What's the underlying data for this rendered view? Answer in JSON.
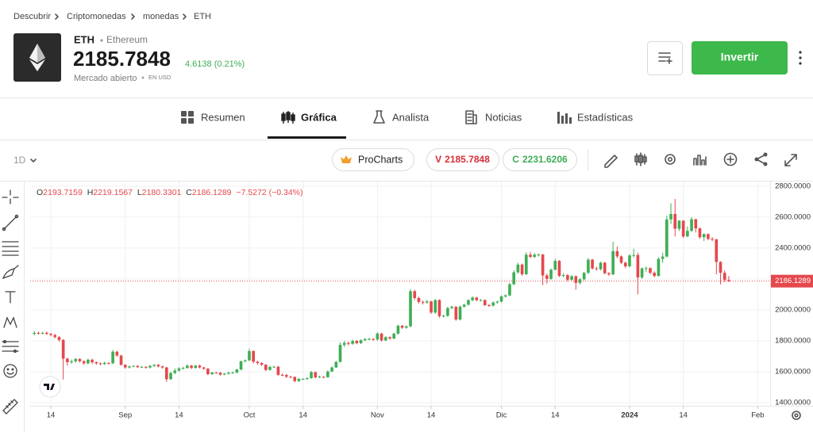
{
  "breadcrumb": [
    "Descubrir",
    "Criptomonedas",
    "monedas",
    "ETH"
  ],
  "instrument": {
    "symbol": "ETH",
    "name": "Ethereum",
    "price": "2185.7848",
    "change": "4.6138 (0.21%)",
    "status": "Mercado abierto",
    "currency": "EN USD"
  },
  "actions": {
    "invest": "Invertir"
  },
  "tabs": [
    "Resumen",
    "Gráfica",
    "Analista",
    "Noticias",
    "Estadísticas"
  ],
  "toolbar": {
    "interval": "1D",
    "procharts": "ProCharts",
    "sell_label": "V",
    "buy_label": "C",
    "buy_price": "2231.6206"
  },
  "chart_data": {
    "type": "candlestick",
    "ohlc_labels": [
      "O",
      "H",
      "L",
      "C"
    ],
    "change_label": "−7.5272 (−0.34%)",
    "up_color": "#3fae55",
    "down_color": "#e5484d",
    "grid": true,
    "x": [
      "2023-08-10",
      "2023-08-11",
      "2023-08-12",
      "2023-08-13",
      "2023-08-14",
      "2023-08-15",
      "2023-08-16",
      "2023-08-17",
      "2023-08-18",
      "2023-08-19",
      "2023-08-20",
      "2023-08-21",
      "2023-08-22",
      "2023-08-23",
      "2023-08-24",
      "2023-08-25",
      "2023-08-26",
      "2023-08-27",
      "2023-08-28",
      "2023-08-29",
      "2023-08-30",
      "2023-08-31",
      "2023-09-01",
      "2023-09-02",
      "2023-09-03",
      "2023-09-04",
      "2023-09-05",
      "2023-09-06",
      "2023-09-07",
      "2023-09-08",
      "2023-09-09",
      "2023-09-10",
      "2023-09-11",
      "2023-09-12",
      "2023-09-13",
      "2023-09-14",
      "2023-09-15",
      "2023-09-16",
      "2023-09-17",
      "2023-09-18",
      "2023-09-19",
      "2023-09-20",
      "2023-09-21",
      "2023-09-22",
      "2023-09-23",
      "2023-09-24",
      "2023-09-25",
      "2023-09-26",
      "2023-09-27",
      "2023-09-28",
      "2023-09-29",
      "2023-09-30",
      "2023-10-01",
      "2023-10-02",
      "2023-10-03",
      "2023-10-04",
      "2023-10-05",
      "2023-10-06",
      "2023-10-07",
      "2023-10-08",
      "2023-10-09",
      "2023-10-10",
      "2023-10-11",
      "2023-10-12",
      "2023-10-13",
      "2023-10-14",
      "2023-10-15",
      "2023-10-16",
      "2023-10-17",
      "2023-10-18",
      "2023-10-19",
      "2023-10-20",
      "2023-10-21",
      "2023-10-22",
      "2023-10-23",
      "2023-10-24",
      "2023-10-25",
      "2023-10-26",
      "2023-10-27",
      "2023-10-28",
      "2023-10-29",
      "2023-10-30",
      "2023-10-31",
      "2023-11-01",
      "2023-11-02",
      "2023-11-03",
      "2023-11-04",
      "2023-11-05",
      "2023-11-06",
      "2023-11-07",
      "2023-11-08",
      "2023-11-09",
      "2023-11-10",
      "2023-11-11",
      "2023-11-12",
      "2023-11-13",
      "2023-11-14",
      "2023-11-15",
      "2023-11-16",
      "2023-11-17",
      "2023-11-18",
      "2023-11-19",
      "2023-11-20",
      "2023-11-21",
      "2023-11-22",
      "2023-11-23",
      "2023-11-24",
      "2023-11-25",
      "2023-11-26",
      "2023-11-27",
      "2023-11-28",
      "2023-11-29",
      "2023-11-30",
      "2023-12-01",
      "2023-12-02",
      "2023-12-03",
      "2023-12-04",
      "2023-12-05",
      "2023-12-06",
      "2023-12-07",
      "2023-12-08",
      "2023-12-09",
      "2023-12-10",
      "2023-12-11",
      "2023-12-12",
      "2023-12-13",
      "2023-12-14",
      "2023-12-15",
      "2023-12-16",
      "2023-12-17",
      "2023-12-18",
      "2023-12-19",
      "2023-12-20",
      "2023-12-21",
      "2023-12-22",
      "2023-12-23",
      "2023-12-24",
      "2023-12-25",
      "2023-12-26",
      "2023-12-27",
      "2023-12-28",
      "2023-12-29",
      "2023-12-30",
      "2023-12-31",
      "2024-01-01",
      "2024-01-02",
      "2024-01-03",
      "2024-01-04",
      "2024-01-05",
      "2024-01-06",
      "2024-01-07",
      "2024-01-08",
      "2024-01-09",
      "2024-01-10",
      "2024-01-11",
      "2024-01-12",
      "2024-01-13",
      "2024-01-14",
      "2024-01-15",
      "2024-01-16",
      "2024-01-17",
      "2024-01-18",
      "2024-01-19",
      "2024-01-20",
      "2024-01-21",
      "2024-01-22",
      "2024-01-23",
      "2024-01-24",
      "2024-01-25"
    ],
    "open": [
      1845,
      1852,
      1848,
      1852,
      1845,
      1838,
      1825,
      1806,
      1685,
      1662,
      1668,
      1683,
      1668,
      1655,
      1678,
      1662,
      1655,
      1650,
      1658,
      1655,
      1730,
      1705,
      1645,
      1628,
      1635,
      1638,
      1630,
      1632,
      1628,
      1638,
      1645,
      1635,
      1628,
      1552,
      1592,
      1608,
      1622,
      1625,
      1640,
      1625,
      1640,
      1628,
      1620,
      1585,
      1595,
      1594,
      1582,
      1588,
      1595,
      1595,
      1615,
      1668,
      1674,
      1734,
      1665,
      1657,
      1646,
      1612,
      1631,
      1633,
      1580,
      1579,
      1568,
      1567,
      1540,
      1554,
      1554,
      1559,
      1598,
      1564,
      1568,
      1565,
      1602,
      1628,
      1664,
      1774,
      1787,
      1781,
      1800,
      1785,
      1804,
      1812,
      1812,
      1809,
      1847,
      1803,
      1824,
      1815,
      1847,
      1898,
      1885,
      1894,
      2121,
      2077,
      2052,
      2048,
      2055,
      1983,
      2064,
      1960,
      1962,
      2012,
      2020,
      1938,
      2021,
      2034,
      2063,
      2080,
      2063,
      2064,
      2031,
      2028,
      2048,
      2054,
      2087,
      2094,
      2166,
      2243,
      2293,
      2231,
      2357,
      2343,
      2357,
      2358,
      2223,
      2201,
      2260,
      2317,
      2220,
      2225,
      2195,
      2218,
      2175,
      2198,
      2240,
      2325,
      2268,
      2263,
      2305,
      2237,
      2230,
      2380,
      2346,
      2305,
      2282,
      2352,
      2355,
      2210,
      2268,
      2270,
      2240,
      2220,
      2330,
      2345,
      2585,
      2620,
      2525,
      2577,
      2475,
      2511,
      2586,
      2527,
      2470,
      2490,
      2459,
      2456,
      2310,
      2240,
      2193.7159
    ],
    "high": [
      1864,
      1860,
      1858,
      1860,
      1852,
      1845,
      1830,
      1812,
      1692,
      1680,
      1690,
      1688,
      1675,
      1685,
      1685,
      1668,
      1660,
      1665,
      1662,
      1742,
      1735,
      1710,
      1650,
      1640,
      1642,
      1642,
      1638,
      1636,
      1645,
      1650,
      1650,
      1640,
      1632,
      1600,
      1622,
      1630,
      1632,
      1648,
      1645,
      1645,
      1645,
      1632,
      1625,
      1600,
      1600,
      1598,
      1592,
      1600,
      1602,
      1620,
      1672,
      1680,
      1750,
      1740,
      1672,
      1662,
      1650,
      1640,
      1638,
      1638,
      1590,
      1585,
      1575,
      1570,
      1560,
      1560,
      1565,
      1605,
      1600,
      1575,
      1572,
      1610,
      1635,
      1670,
      1790,
      1800,
      1795,
      1808,
      1805,
      1810,
      1818,
      1820,
      1818,
      1855,
      1852,
      1830,
      1828,
      1852,
      1905,
      1902,
      1900,
      2135,
      2130,
      2085,
      2060,
      2065,
      2060,
      2070,
      2068,
      1970,
      2020,
      2028,
      2025,
      2028,
      2040,
      2070,
      2088,
      2085,
      2070,
      2068,
      2038,
      2055,
      2060,
      2095,
      2100,
      2175,
      2255,
      2305,
      2300,
      2372,
      2375,
      2368,
      2365,
      2362,
      2235,
      2268,
      2330,
      2322,
      2238,
      2232,
      2225,
      2222,
      2205,
      2245,
      2335,
      2330,
      2280,
      2312,
      2312,
      2245,
      2440,
      2410,
      2352,
      2312,
      2360,
      2395,
      2370,
      2275,
      2280,
      2275,
      2250,
      2340,
      2370,
      2610,
      2690,
      2717,
      2580,
      2580,
      2540,
      2600,
      2590,
      2532,
      2495,
      2495,
      2470,
      2460,
      2315,
      2255,
      2219.1567
    ],
    "low": [
      1836,
      1840,
      1842,
      1838,
      1830,
      1815,
      1795,
      1550,
      1640,
      1652,
      1660,
      1660,
      1645,
      1648,
      1650,
      1645,
      1642,
      1645,
      1648,
      1650,
      1698,
      1640,
      1620,
      1622,
      1630,
      1625,
      1624,
      1620,
      1622,
      1632,
      1628,
      1620,
      1535,
      1548,
      1585,
      1600,
      1615,
      1620,
      1618,
      1620,
      1622,
      1612,
      1578,
      1580,
      1588,
      1575,
      1578,
      1582,
      1588,
      1590,
      1610,
      1660,
      1670,
      1655,
      1645,
      1638,
      1605,
      1608,
      1625,
      1575,
      1572,
      1560,
      1558,
      1532,
      1535,
      1548,
      1548,
      1555,
      1558,
      1560,
      1558,
      1562,
      1598,
      1625,
      1660,
      1760,
      1770,
      1775,
      1778,
      1780,
      1798,
      1805,
      1800,
      1800,
      1795,
      1798,
      1808,
      1810,
      1840,
      1878,
      1878,
      1888,
      2065,
      2040,
      2035,
      2040,
      1975,
      1975,
      1950,
      1952,
      1955,
      2005,
      1930,
      1932,
      2015,
      2028,
      2055,
      2055,
      2055,
      2025,
      2020,
      2022,
      2040,
      2048,
      2080,
      2088,
      2160,
      2235,
      2220,
      2225,
      2335,
      2335,
      2345,
      2160,
      2170,
      2195,
      2255,
      2212,
      2210,
      2185,
      2188,
      2130,
      2165,
      2190,
      2232,
      2260,
      2255,
      2255,
      2230,
      2220,
      2225,
      2335,
      2295,
      2270,
      2275,
      2340,
      2100,
      2200,
      2245,
      2230,
      2210,
      2215,
      2305,
      2340,
      2555,
      2475,
      2510,
      2465,
      2470,
      2505,
      2500,
      2460,
      2445,
      2450,
      2445,
      2230,
      2165,
      2180,
      2180.3301
    ],
    "close": [
      1852,
      1848,
      1852,
      1845,
      1838,
      1825,
      1806,
      1685,
      1662,
      1668,
      1683,
      1668,
      1655,
      1678,
      1662,
      1655,
      1650,
      1658,
      1655,
      1730,
      1705,
      1645,
      1628,
      1635,
      1638,
      1630,
      1632,
      1628,
      1638,
      1645,
      1635,
      1628,
      1552,
      1592,
      1608,
      1622,
      1625,
      1640,
      1625,
      1640,
      1628,
      1620,
      1585,
      1595,
      1594,
      1582,
      1588,
      1595,
      1595,
      1615,
      1668,
      1674,
      1734,
      1665,
      1657,
      1646,
      1612,
      1631,
      1633,
      1580,
      1579,
      1568,
      1567,
      1540,
      1554,
      1554,
      1559,
      1598,
      1564,
      1568,
      1565,
      1602,
      1628,
      1664,
      1774,
      1787,
      1781,
      1800,
      1785,
      1804,
      1812,
      1812,
      1809,
      1847,
      1803,
      1824,
      1815,
      1847,
      1898,
      1885,
      1894,
      2121,
      2077,
      2052,
      2048,
      2055,
      1983,
      2064,
      1960,
      1962,
      2012,
      2020,
      1938,
      2021,
      2034,
      2063,
      2080,
      2063,
      2064,
      2031,
      2028,
      2048,
      2054,
      2087,
      2094,
      2166,
      2243,
      2293,
      2231,
      2357,
      2343,
      2357,
      2358,
      2223,
      2201,
      2260,
      2317,
      2220,
      2225,
      2195,
      2218,
      2175,
      2198,
      2240,
      2325,
      2268,
      2263,
      2305,
      2237,
      2230,
      2380,
      2346,
      2305,
      2282,
      2352,
      2355,
      2210,
      2268,
      2270,
      2240,
      2220,
      2330,
      2345,
      2585,
      2620,
      2525,
      2577,
      2475,
      2511,
      2586,
      2527,
      2470,
      2490,
      2459,
      2456,
      2310,
      2240,
      2193.7159,
      2186.1289
    ],
    "xlim": [
      "2023-08-09",
      "2024-02-04"
    ],
    "xticks": [
      {
        "value": "2023-08-14",
        "label": "14"
      },
      {
        "value": "2023-09-01",
        "label": "Sep"
      },
      {
        "value": "2023-09-14",
        "label": "14"
      },
      {
        "value": "2023-10-01",
        "label": "Oct"
      },
      {
        "value": "2023-10-14",
        "label": "14"
      },
      {
        "value": "2023-11-01",
        "label": "Nov"
      },
      {
        "value": "2023-11-14",
        "label": "14"
      },
      {
        "value": "2023-12-01",
        "label": "Dic"
      },
      {
        "value": "2023-12-14",
        "label": "14"
      },
      {
        "value": "2024-01-01",
        "label": "2024"
      },
      {
        "value": "2024-01-14",
        "label": "14"
      },
      {
        "value": "2024-02-01",
        "label": "Feb"
      }
    ],
    "ylim": [
      1380,
      2830
    ],
    "yticks": [
      {
        "value": 1400,
        "label": "1400.0000"
      },
      {
        "value": 1600,
        "label": "1600.0000"
      },
      {
        "value": 1800,
        "label": "1800.0000"
      },
      {
        "value": 2000,
        "label": "2000.0000"
      },
      {
        "value": 2200,
        "label": "2200.0000"
      },
      {
        "value": 2400,
        "label": "2400.0000"
      },
      {
        "value": 2600,
        "label": "2600.0000"
      },
      {
        "value": 2800,
        "label": "2800.0000"
      }
    ]
  }
}
